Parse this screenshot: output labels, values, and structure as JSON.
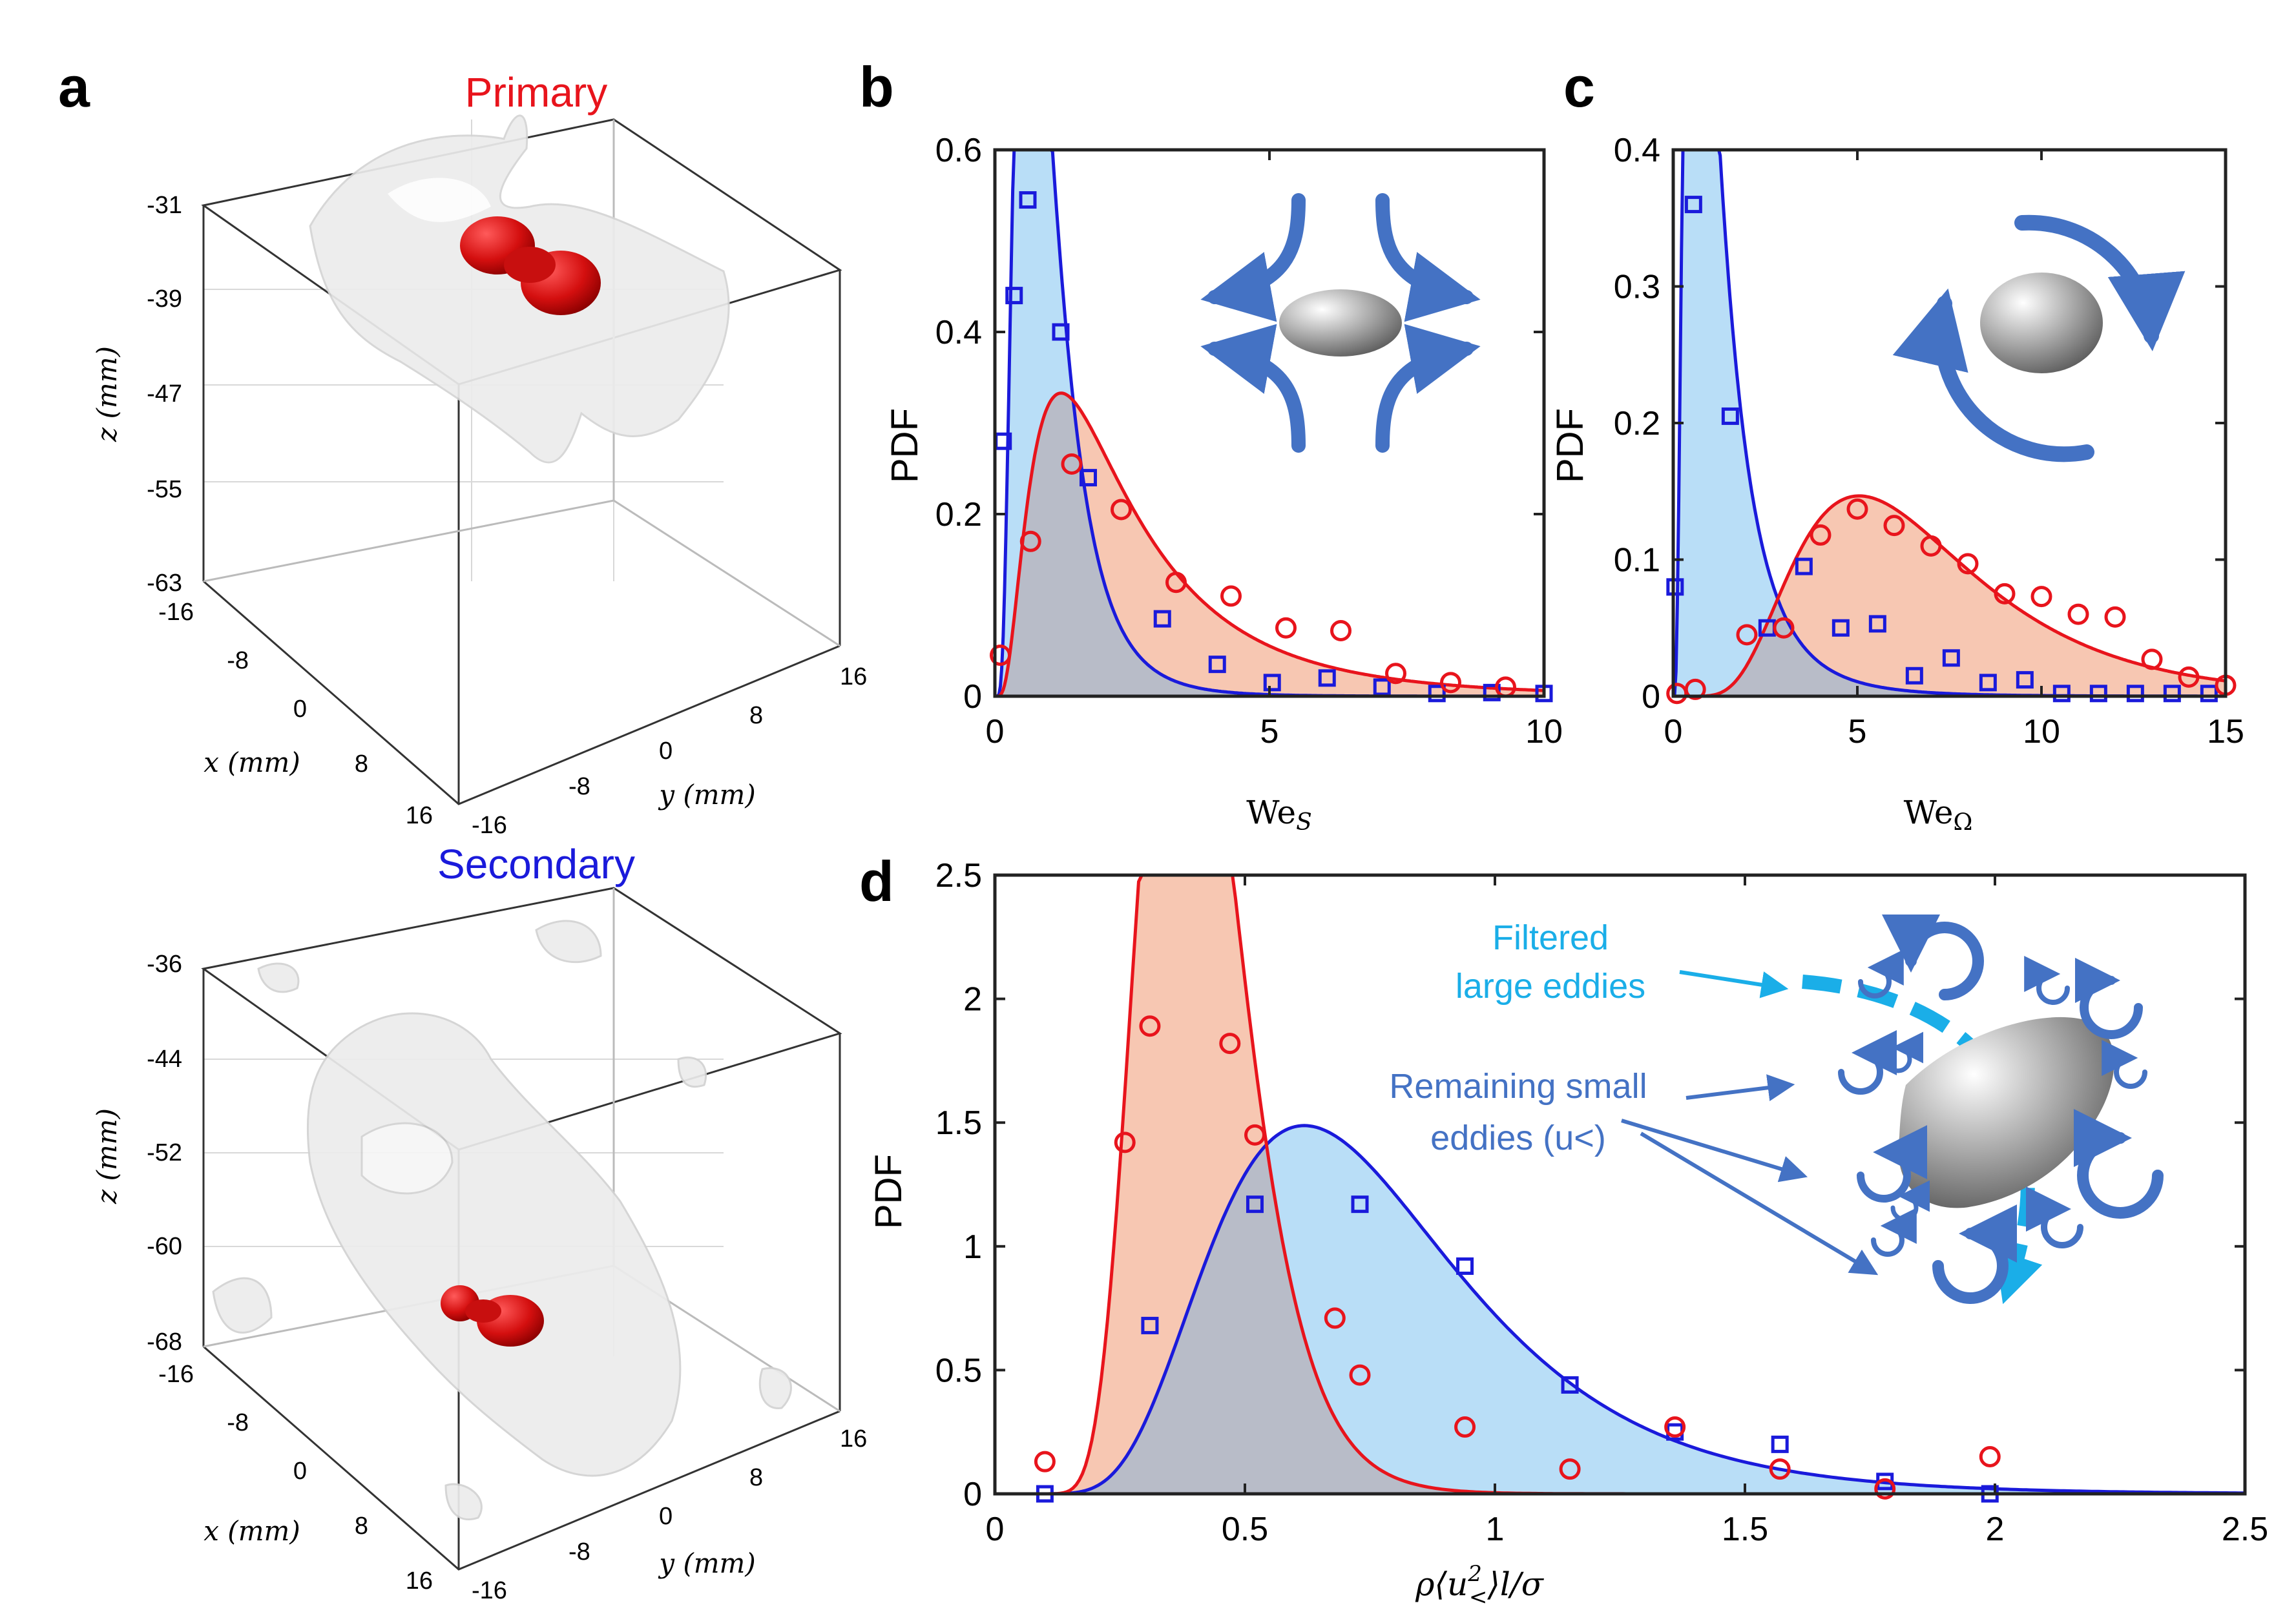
{
  "panels": {
    "a": {
      "label": "a",
      "title": "Primary",
      "title_color": "#e8141c",
      "z_ticks": [
        "-31",
        "-39",
        "-47",
        "-55",
        "-63"
      ],
      "x_ticks": [
        "-16",
        "-8",
        "0",
        "8",
        "16"
      ],
      "y_ticks": [
        "-16",
        "-8",
        "0",
        "8",
        "16"
      ],
      "x_label": "x (mm)",
      "y_label": "y (mm)",
      "z_label": "z (mm)"
    },
    "a2": {
      "title": "Secondary",
      "title_color": "#1a1adb",
      "z_ticks": [
        "-36",
        "-44",
        "-52",
        "-60",
        "-68"
      ],
      "x_ticks": [
        "-16",
        "-8",
        "0",
        "8",
        "16"
      ],
      "y_ticks": [
        "-16",
        "-8",
        "0",
        "8",
        "16"
      ],
      "x_label": "x (mm)",
      "y_label": "y (mm)",
      "z_label": "z (mm)"
    },
    "b": {
      "label": "b"
    },
    "c": {
      "label": "c"
    },
    "d": {
      "label": "d",
      "annotations": {
        "filtered": [
          "Filtered",
          "large eddies"
        ],
        "remaining": [
          "Remaining small",
          "eddies (u<)"
        ]
      },
      "filtered_color": "#1aaee8",
      "remaining_color": "#4472c4"
    }
  },
  "colors": {
    "primary": "#e8141c",
    "secondary": "#1a1adb",
    "fill_primary": "#f7c4ae",
    "fill_secondary": "#b5dcf7",
    "overlap": "#b8bcc8",
    "arrow": "#4472c4"
  },
  "chart_data": [
    {
      "id": "b",
      "type": "line",
      "xlabel": "WeS",
      "ylabel": "PDF",
      "xlim": [
        0,
        10
      ],
      "ylim": [
        0,
        0.6
      ],
      "xticks": [
        0,
        5,
        10
      ],
      "yticks": [
        0,
        0.2,
        0.4,
        0.6
      ],
      "series": [
        {
          "name": "secondary",
          "marker": "square",
          "x": [
            0.15,
            0.35,
            0.6,
            1.2,
            1.7,
            3.05,
            4.05,
            5.05,
            6.05,
            7.05,
            8.05,
            9.05,
            10
          ],
          "y": [
            0.28,
            0.44,
            0.545,
            0.4,
            0.24,
            0.085,
            0.035,
            0.015,
            0.02,
            0.01,
            0.003,
            0.004,
            0.003
          ]
        },
        {
          "name": "primary",
          "marker": "circle",
          "x": [
            0.1,
            0.65,
            1.4,
            2.3,
            3.3,
            4.3,
            5.3,
            6.3,
            7.3,
            8.3,
            9.3
          ],
          "y": [
            0.045,
            0.17,
            0.255,
            0.205,
            0.125,
            0.11,
            0.075,
            0.072,
            0.025,
            0.015,
            0.01
          ]
        }
      ],
      "fits": [
        {
          "name": "secondary",
          "kind": "lognormal",
          "mu": -0.155,
          "sigma": 0.6
        },
        {
          "name": "primary",
          "kind": "lognormal",
          "mu": 0.75,
          "sigma": 0.75
        }
      ]
    },
    {
      "id": "c",
      "type": "line",
      "xlabel": "WeΩ",
      "ylabel": "PDF",
      "xlim": [
        0,
        15
      ],
      "ylim": [
        0,
        0.4
      ],
      "xticks": [
        0,
        5,
        10,
        15
      ],
      "yticks": [
        0,
        0.1,
        0.2,
        0.3,
        0.4
      ],
      "series": [
        {
          "name": "secondary",
          "marker": "square",
          "x": [
            0.05,
            0.55,
            1.55,
            2.55,
            3.55,
            4.55,
            5.55,
            6.55,
            7.55,
            8.55,
            9.55,
            10.55,
            11.55,
            12.55,
            13.55,
            14.55
          ],
          "y": [
            0.08,
            0.36,
            0.205,
            0.05,
            0.095,
            0.05,
            0.053,
            0.015,
            0.028,
            0.01,
            0.012,
            0.002,
            0.002,
            0.002,
            0.002,
            0.002
          ]
        },
        {
          "name": "primary",
          "marker": "circle",
          "x": [
            0.1,
            0.6,
            2.0,
            3.0,
            4.0,
            5.0,
            6.0,
            7.0,
            8.0,
            9.0,
            10.0,
            11.0,
            12.0,
            13.0,
            14.0,
            15.0
          ],
          "y": [
            0.002,
            0.005,
            0.045,
            0.05,
            0.118,
            0.137,
            0.125,
            0.11,
            0.097,
            0.075,
            0.073,
            0.06,
            0.058,
            0.027,
            0.014,
            0.008
          ]
        }
      ],
      "fits": [
        {
          "name": "secondary",
          "kind": "lognormal",
          "mu": 0.0,
          "sigma": 0.75
        },
        {
          "name": "primary",
          "kind": "lognormal",
          "mu": 1.85,
          "sigma": 0.48
        }
      ]
    },
    {
      "id": "d",
      "type": "line",
      "xlabel": "ρ⟨u<2⟩l/σ",
      "ylabel": "PDF",
      "xlim": [
        0,
        2.5
      ],
      "ylim": [
        0,
        2.5
      ],
      "xticks": [
        0,
        0.5,
        1,
        1.5,
        2,
        2.5
      ],
      "yticks": [
        0,
        0.5,
        1,
        1.5,
        2,
        2.5
      ],
      "series": [
        {
          "name": "secondary",
          "marker": "square",
          "x": [
            0.1,
            0.31,
            0.52,
            0.73,
            0.94,
            1.15,
            1.36,
            1.57,
            1.78,
            1.99
          ],
          "y": [
            0.0,
            0.68,
            1.17,
            1.17,
            0.92,
            0.44,
            0.25,
            0.2,
            0.05,
            0.0
          ]
        },
        {
          "name": "primary",
          "marker": "circle",
          "x": [
            0.1,
            0.26,
            0.31,
            0.47,
            0.52,
            0.68,
            0.73,
            0.94,
            1.15,
            1.36,
            1.57,
            1.78,
            1.99
          ],
          "y": [
            0.13,
            1.42,
            1.89,
            1.82,
            1.45,
            0.71,
            0.48,
            0.27,
            0.1,
            0.27,
            0.1,
            0.02,
            0.15
          ]
        }
      ],
      "fits": [
        {
          "name": "secondary",
          "kind": "lognormal",
          "mu": -0.32,
          "sigma": 0.4
        },
        {
          "name": "primary",
          "kind": "lognormal",
          "mu": -0.92,
          "sigma": 0.27
        }
      ]
    }
  ]
}
